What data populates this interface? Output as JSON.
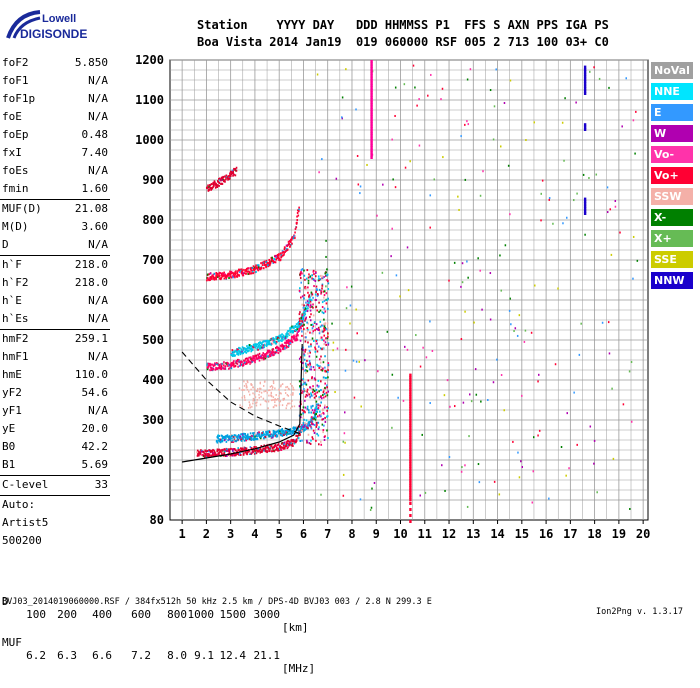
{
  "brand": {
    "line1": "Lowell",
    "line2": "DIGISONDE"
  },
  "header": {
    "line1": "Station    YYYY DAY   DDD HHMMSS P1  FFS S AXN PPS IGA PS",
    "line2": "Boa Vista 2014 Jan19  019 060000 RSF 005 2 713 100 03+ C0"
  },
  "params": [
    {
      "k": "foF2",
      "v": "5.850"
    },
    {
      "k": "foF1",
      "v": "N/A"
    },
    {
      "k": "foF1p",
      "v": "N/A"
    },
    {
      "k": "foE",
      "v": "N/A"
    },
    {
      "k": "foEp",
      "v": "0.48"
    },
    {
      "k": "fxI",
      "v": "7.40"
    },
    {
      "k": "foEs",
      "v": "N/A"
    },
    {
      "k": "fmin",
      "v": "1.60"
    },
    {
      "k": "MUF(D)",
      "v": "21.08"
    },
    {
      "k": "M(D)",
      "v": "3.60"
    },
    {
      "k": "D",
      "v": "N/A"
    },
    {
      "k": "h`F",
      "v": "218.0"
    },
    {
      "k": "h`F2",
      "v": "218.0"
    },
    {
      "k": "h`E",
      "v": "N/A"
    },
    {
      "k": "h`Es",
      "v": "N/A"
    },
    {
      "k": "hmF2",
      "v": "259.1"
    },
    {
      "k": "hmF1",
      "v": "N/A"
    },
    {
      "k": "hmE",
      "v": "110.0"
    },
    {
      "k": "yF2",
      "v": "54.6"
    },
    {
      "k": "yF1",
      "v": "N/A"
    },
    {
      "k": "yE",
      "v": "20.0"
    },
    {
      "k": "B0",
      "v": "42.2"
    },
    {
      "k": "B1",
      "v": "5.69"
    },
    {
      "k": "C-level",
      "v": "33"
    },
    {
      "k": "Auto:",
      "v": ""
    },
    {
      "k": "Artist5",
      "v": ""
    },
    {
      "k": "500200",
      "v": ""
    }
  ],
  "legend": [
    {
      "label": "NoVal",
      "bg": "#a0a0a0",
      "fg": "#ffffff"
    },
    {
      "label": "NNE",
      "bg": "#00e5ff",
      "fg": "#ffffff"
    },
    {
      "label": "E",
      "bg": "#3399ff",
      "fg": "#ffffff"
    },
    {
      "label": "W",
      "bg": "#b000b0",
      "fg": "#ffffff"
    },
    {
      "label": "Vo-",
      "bg": "#ff33aa",
      "fg": "#ffffff"
    },
    {
      "label": "Vo+",
      "bg": "#ff0033",
      "fg": "#ffffff"
    },
    {
      "label": "SSW",
      "bg": "#f4b0a8",
      "fg": "#ffffff"
    },
    {
      "label": "X-",
      "bg": "#008000",
      "fg": "#ffffff"
    },
    {
      "label": "X+",
      "bg": "#66bb55",
      "fg": "#ffffff"
    },
    {
      "label": "SSE",
      "bg": "#cccc00",
      "fg": "#ffffff"
    },
    {
      "label": "NNW",
      "bg": "#1a00cc",
      "fg": "#ffffff"
    }
  ],
  "muf_table": {
    "d_label": "D",
    "d_values": [
      "100",
      "200",
      "400",
      "600",
      "800",
      "1000",
      "1500",
      "3000"
    ],
    "d_unit": "[km]",
    "muf_label": "MUF",
    "muf_values": [
      "6.2",
      "6.3",
      "6.6",
      "7.2",
      "8.0",
      "9.1",
      "12.4",
      "21.1"
    ],
    "muf_unit": "[MHz]"
  },
  "footer": {
    "left": "BVJ03_2014019060000.RSF / 384fx512h 50 kHz 2.5 km / DPS-4D BVJ03 003 / 2.8 N 299.3 E",
    "right": "Ion2Png v. 1.3.17"
  },
  "chart_data": {
    "type": "scatter",
    "xlim": [
      0.5,
      20.2
    ],
    "ylim": [
      80,
      1200
    ],
    "xticks": [
      1,
      2,
      3,
      4,
      5,
      6,
      7,
      8,
      9,
      10,
      11,
      12,
      13,
      14,
      15,
      16,
      17,
      18,
      19,
      20
    ],
    "yticks": [
      80,
      200,
      300,
      400,
      500,
      600,
      700,
      800,
      900,
      1000,
      1100,
      1200
    ],
    "grid": true,
    "traces": [
      {
        "name": "o-trace F2",
        "color": "#e00030",
        "points": [
          [
            1.6,
            220
          ],
          [
            2.0,
            219
          ],
          [
            3.0,
            222
          ],
          [
            4.0,
            227
          ],
          [
            5.0,
            235
          ],
          [
            5.5,
            245
          ],
          [
            5.85,
            270
          ]
        ]
      },
      {
        "name": "x-trace F2",
        "color": "#00a0e0",
        "points": [
          [
            2.4,
            255
          ],
          [
            3.0,
            256
          ],
          [
            4.0,
            262
          ],
          [
            5.0,
            270
          ],
          [
            5.8,
            278
          ],
          [
            6.2,
            290
          ],
          [
            6.6,
            340
          ]
        ]
      },
      {
        "name": "2F",
        "color": "#ff0066",
        "points": [
          [
            2.0,
            435
          ],
          [
            3.0,
            440
          ],
          [
            4.0,
            455
          ],
          [
            5.0,
            480
          ],
          [
            5.7,
            510
          ],
          [
            6.0,
            570
          ]
        ]
      },
      {
        "name": "2F x",
        "color": "#00c8e8",
        "points": [
          [
            3.0,
            470
          ],
          [
            4.0,
            485
          ],
          [
            5.0,
            505
          ],
          [
            5.8,
            540
          ],
          [
            6.3,
            610
          ]
        ]
      },
      {
        "name": "3F",
        "color": "#ff0033",
        "points": [
          [
            2.0,
            660
          ],
          [
            3.0,
            665
          ],
          [
            4.0,
            680
          ],
          [
            5.0,
            710
          ],
          [
            5.6,
            760
          ],
          [
            5.8,
            840
          ]
        ]
      },
      {
        "name": "4F",
        "color": "#e00030",
        "points": [
          [
            2.0,
            880
          ],
          [
            2.6,
            900
          ],
          [
            3.2,
            925
          ]
        ]
      }
    ],
    "model_profile": {
      "color": "#000000",
      "points": [
        [
          1.0,
          195
        ],
        [
          2.0,
          205
        ],
        [
          3.0,
          215
        ],
        [
          4.0,
          228
        ],
        [
          5.0,
          245
        ],
        [
          5.6,
          262
        ],
        [
          5.85,
          290
        ],
        [
          5.95,
          490
        ]
      ]
    },
    "model_dashed": {
      "color": "#000000",
      "points": [
        [
          1.0,
          470
        ],
        [
          2.0,
          400
        ],
        [
          3.0,
          345
        ],
        [
          4.0,
          310
        ],
        [
          5.0,
          285
        ],
        [
          5.9,
          265
        ]
      ]
    },
    "vertical_streaks": [
      {
        "x": 8.8,
        "y0": 960,
        "y1": 1200,
        "color": "#ff0099"
      },
      {
        "x": 10.4,
        "y0": 80,
        "y1": 420,
        "color": "#ff0033"
      },
      {
        "x": 17.6,
        "y0": 1120,
        "y1": 1190,
        "color": "#1a00cc"
      },
      {
        "x": 17.6,
        "y0": 820,
        "y1": 860,
        "color": "#1a00cc"
      },
      {
        "x": 17.6,
        "y0": 1030,
        "y1": 1045,
        "color": "#1a00cc"
      }
    ]
  }
}
